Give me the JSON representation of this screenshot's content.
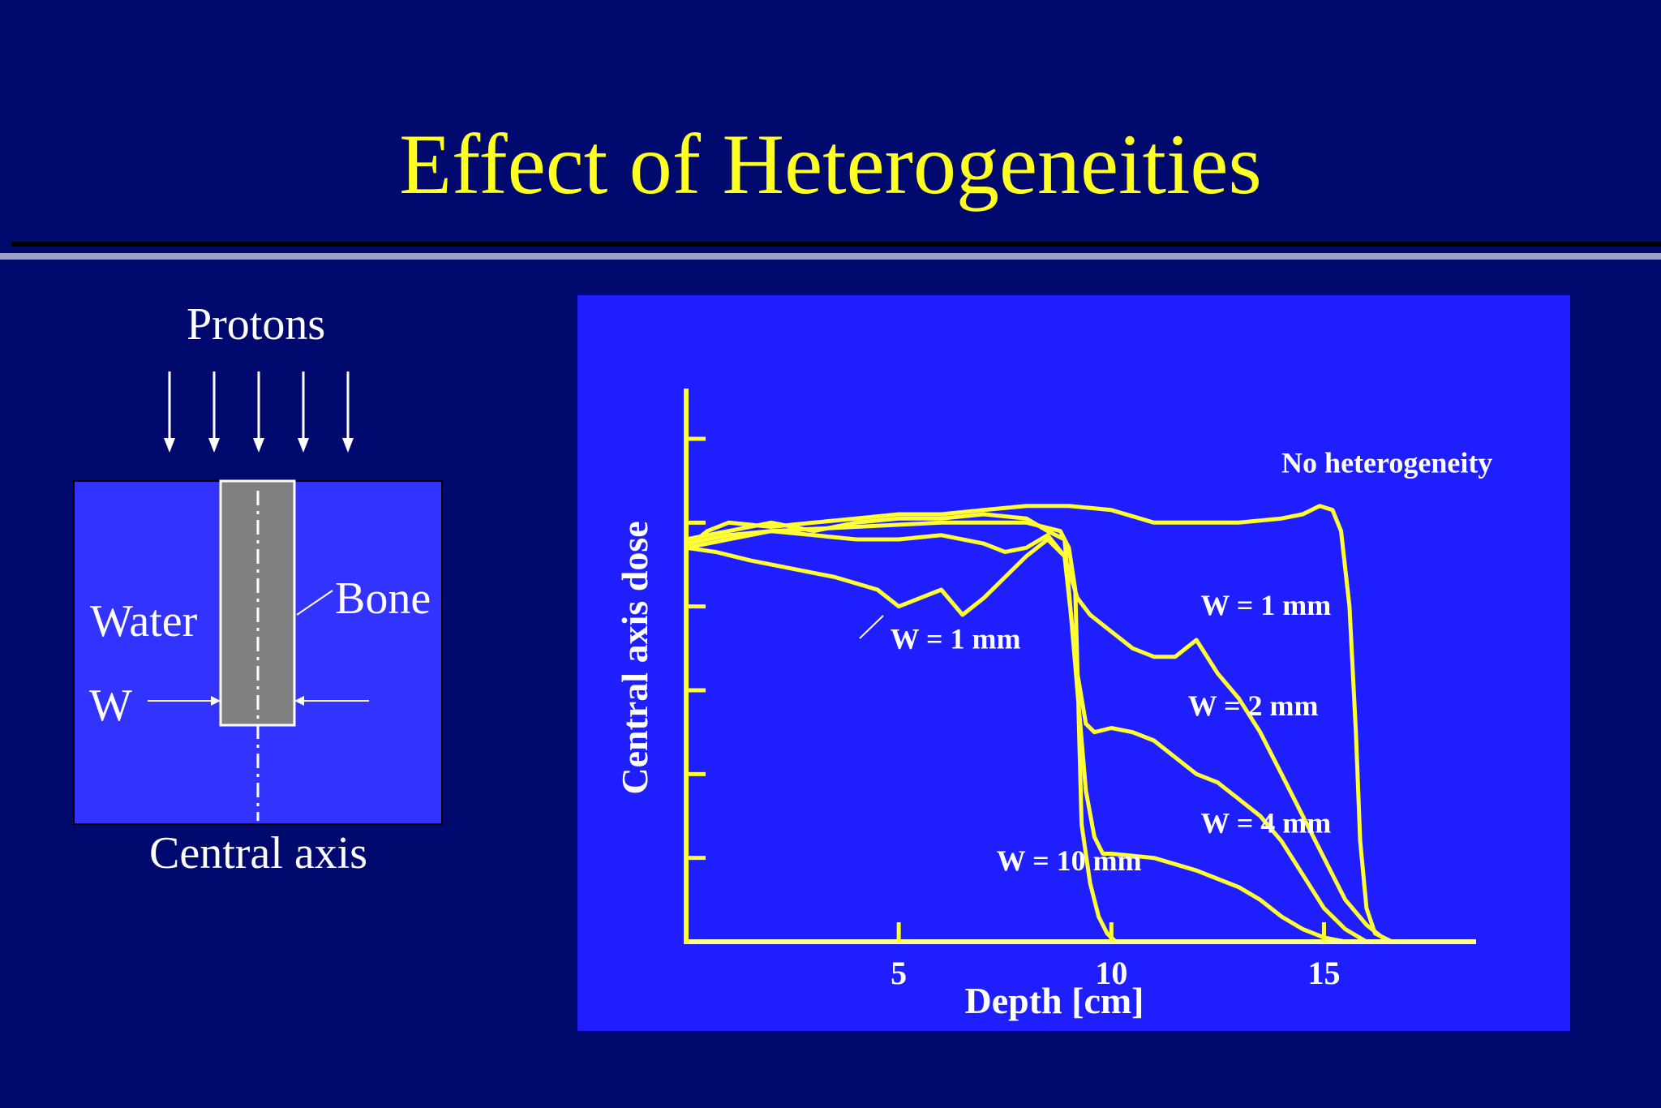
{
  "slide": {
    "title": "Effect of Heterogeneities"
  },
  "diagram": {
    "protons_label": "Protons",
    "water_label": "Water",
    "bone_label": "Bone",
    "w_label": "W",
    "central_axis_label": "Central axis",
    "arrow_count": 5,
    "colors": {
      "water": "#3333ff",
      "bone": "#808080",
      "lines": "#ffffff"
    }
  },
  "chart_data": {
    "type": "line",
    "title": "",
    "xlabel": "Depth [cm]",
    "ylabel": "Central axis dose",
    "xlim": [
      0,
      18.5
    ],
    "ylim": [
      0,
      6.6
    ],
    "x_ticks": [
      5,
      10,
      15
    ],
    "y_ticks": [
      1,
      2,
      3,
      4,
      5,
      6
    ],
    "grid": false,
    "line_color": "#ffff33",
    "axis_color": "#ffff33",
    "series": [
      {
        "name": "No heterogeneity",
        "x": [
          0,
          0.5,
          1,
          2,
          3,
          4,
          5,
          6,
          7,
          8,
          9,
          10,
          11,
          12,
          13,
          14,
          14.5,
          14.9,
          15.2,
          15.4,
          15.6,
          15.75,
          15.85,
          16.0,
          16.2,
          16.6
        ],
        "y": [
          4.7,
          4.9,
          5.0,
          4.95,
          5.0,
          5.05,
          5.1,
          5.1,
          5.15,
          5.2,
          5.2,
          5.15,
          5.0,
          5.0,
          5.0,
          5.05,
          5.1,
          5.2,
          5.15,
          4.9,
          4.0,
          2.5,
          1.2,
          0.4,
          0.1,
          0
        ]
      },
      {
        "name": "W = 1 mm",
        "x": [
          0,
          0.7,
          1.5,
          2.5,
          3.5,
          4.5,
          5.0,
          5.5,
          6.0,
          6.5,
          7.0,
          7.5,
          8.0,
          8.5,
          8.9,
          9.2,
          9.5,
          10.0,
          10.5,
          11.0,
          11.5,
          12.0,
          12.5,
          13.0,
          13.5,
          14.0,
          14.5,
          15.0,
          15.5,
          16.0,
          16.5
        ],
        "y": [
          4.7,
          4.65,
          4.55,
          4.45,
          4.35,
          4.2,
          4.0,
          4.1,
          4.2,
          3.9,
          4.1,
          4.35,
          4.6,
          4.8,
          4.6,
          4.1,
          3.9,
          3.7,
          3.5,
          3.4,
          3.4,
          3.6,
          3.2,
          2.9,
          2.5,
          2.0,
          1.5,
          1.0,
          0.5,
          0.2,
          0
        ]
      },
      {
        "name": "W = 2 mm",
        "x": [
          0,
          1,
          2,
          3,
          4,
          5,
          6,
          7,
          7.5,
          8.0,
          8.5,
          8.9,
          9.2,
          9.4,
          9.6,
          10.0,
          10.5,
          11.0,
          11.5,
          12.0,
          12.5,
          13.0,
          13.5,
          14.0,
          14.5,
          15.0,
          15.5,
          16.0
        ],
        "y": [
          4.75,
          4.85,
          4.9,
          4.85,
          4.8,
          4.8,
          4.85,
          4.75,
          4.65,
          4.7,
          4.85,
          4.6,
          3.2,
          2.6,
          2.5,
          2.55,
          2.5,
          2.4,
          2.2,
          2.0,
          1.9,
          1.7,
          1.5,
          1.2,
          0.8,
          0.4,
          0.15,
          0
        ]
      },
      {
        "name": "W = 4 mm",
        "x": [
          0,
          1,
          2,
          3,
          4,
          5,
          6,
          7,
          8,
          8.5,
          8.9,
          9.2,
          9.4,
          9.6,
          9.8,
          10.0,
          11.0,
          12.0,
          12.5,
          13.0,
          13.5,
          14.0,
          14.5,
          15.0,
          15.5
        ],
        "y": [
          4.8,
          4.9,
          5.0,
          4.9,
          5.0,
          5.05,
          5.05,
          5.1,
          5.05,
          4.9,
          4.8,
          3.0,
          1.8,
          1.25,
          1.05,
          1.05,
          1.0,
          0.85,
          0.75,
          0.65,
          0.5,
          0.3,
          0.15,
          0.05,
          0
        ]
      },
      {
        "name": "W = 10 mm",
        "x": [
          0,
          2,
          4,
          6,
          8,
          8.8,
          9.0,
          9.15,
          9.3,
          9.5,
          9.7,
          9.9,
          10.1
        ],
        "y": [
          4.7,
          4.9,
          4.95,
          5.0,
          5.0,
          4.9,
          4.7,
          4.2,
          1.4,
          0.7,
          0.3,
          0.1,
          0
        ]
      }
    ],
    "annotations": [
      {
        "text": "No heterogeneity",
        "series": "No heterogeneity",
        "x": 14.0,
        "y": 5.6
      },
      {
        "text": "W = 1 mm",
        "series": "W = 1 mm",
        "x": 4.8,
        "y": 3.5
      },
      {
        "text": "W = 1 mm",
        "series": "W = 1 mm",
        "x": 12.1,
        "y": 3.9
      },
      {
        "text": "W = 2 mm",
        "series": "W = 2 mm",
        "x": 11.8,
        "y": 2.7
      },
      {
        "text": "W = 4 mm",
        "series": "W = 4 mm",
        "x": 12.1,
        "y": 1.3
      },
      {
        "text": "W = 10 mm",
        "series": "W = 10 mm",
        "x": 7.3,
        "y": 0.85
      }
    ]
  }
}
